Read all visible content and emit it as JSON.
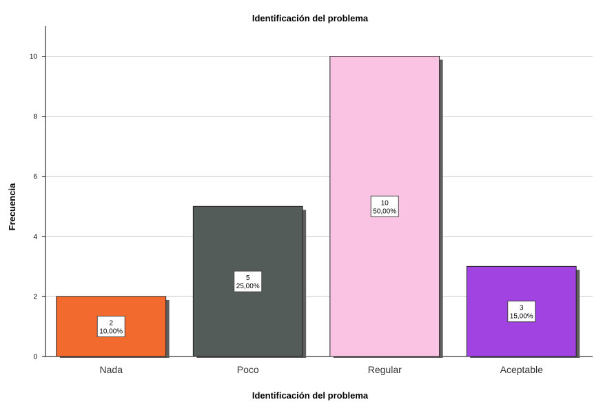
{
  "chart_data": {
    "type": "bar",
    "title": "Identificación del problema",
    "xlabel": "Identificación del problema",
    "ylabel": "Frecuencia",
    "categories": [
      "Nada",
      "Poco",
      "Regular",
      "Aceptable"
    ],
    "values": [
      2,
      5,
      10,
      3
    ],
    "percent_labels": [
      "10,00%",
      "25,00%",
      "50,00%",
      "15,00%"
    ],
    "colors": [
      "#f26a2e",
      "#535c58",
      "#fbc3e3",
      "#a043e0"
    ],
    "ylim": [
      0,
      11
    ],
    "yticks": [
      0,
      2,
      4,
      6,
      8,
      10
    ],
    "grid": true,
    "legend": "none"
  }
}
